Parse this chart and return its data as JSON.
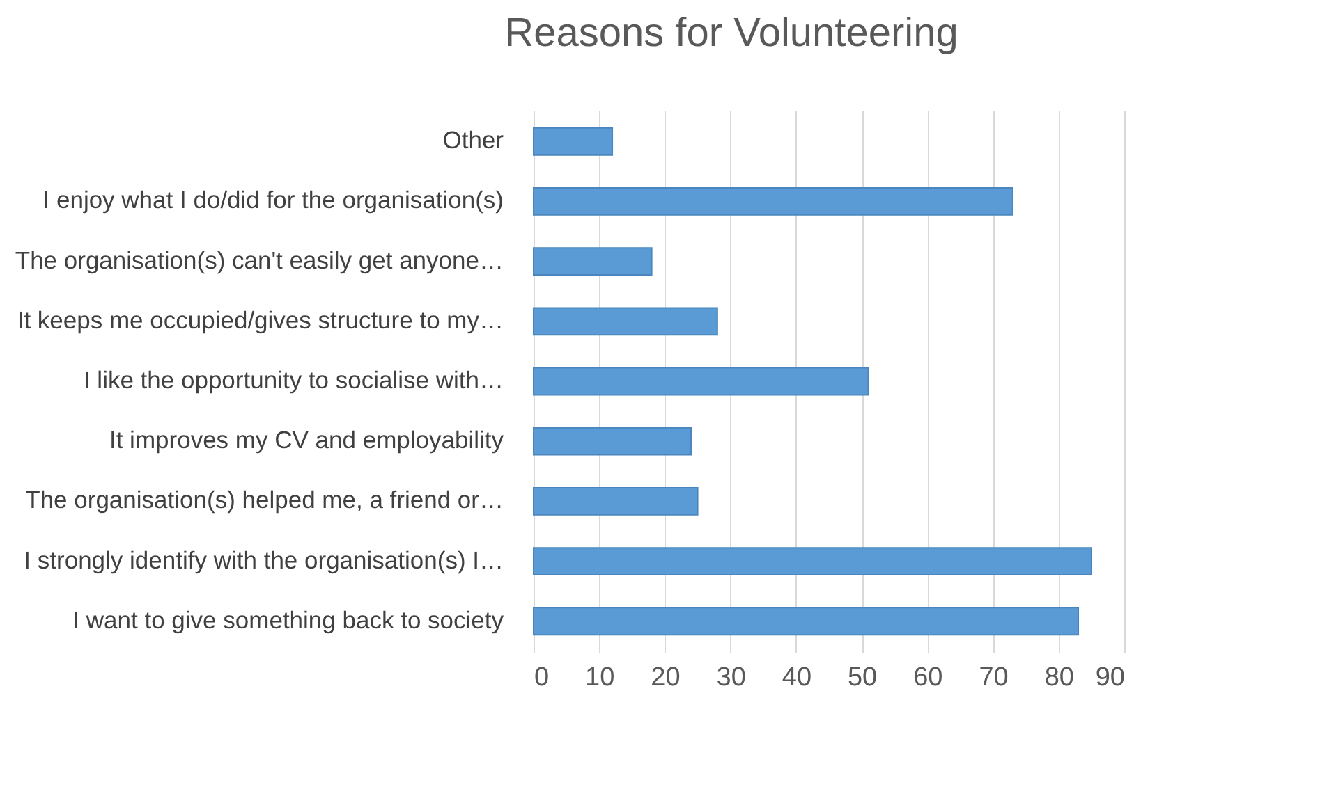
{
  "chart_data": {
    "type": "bar",
    "orientation": "horizontal",
    "title": "Reasons for Volunteering",
    "categories": [
      "Other",
      "I enjoy what I do/did for the organisation(s)",
      "The organisation(s) can't easily get anyone…",
      "It keeps me occupied/gives structure to my…",
      "I like the opportunity to socialise with…",
      "It improves my CV and employability",
      "The organisation(s) helped me, a friend or…",
      "I strongly identify with the organisation(s) I…",
      "I want to give something back to society"
    ],
    "values": [
      12,
      73,
      18,
      28,
      51,
      24,
      25,
      85,
      83
    ],
    "color": "#5b9bd5",
    "xlim": [
      0,
      90
    ],
    "xticks": [
      0,
      10,
      20,
      30,
      40,
      50,
      60,
      70,
      80,
      90
    ],
    "grid": "x"
  }
}
